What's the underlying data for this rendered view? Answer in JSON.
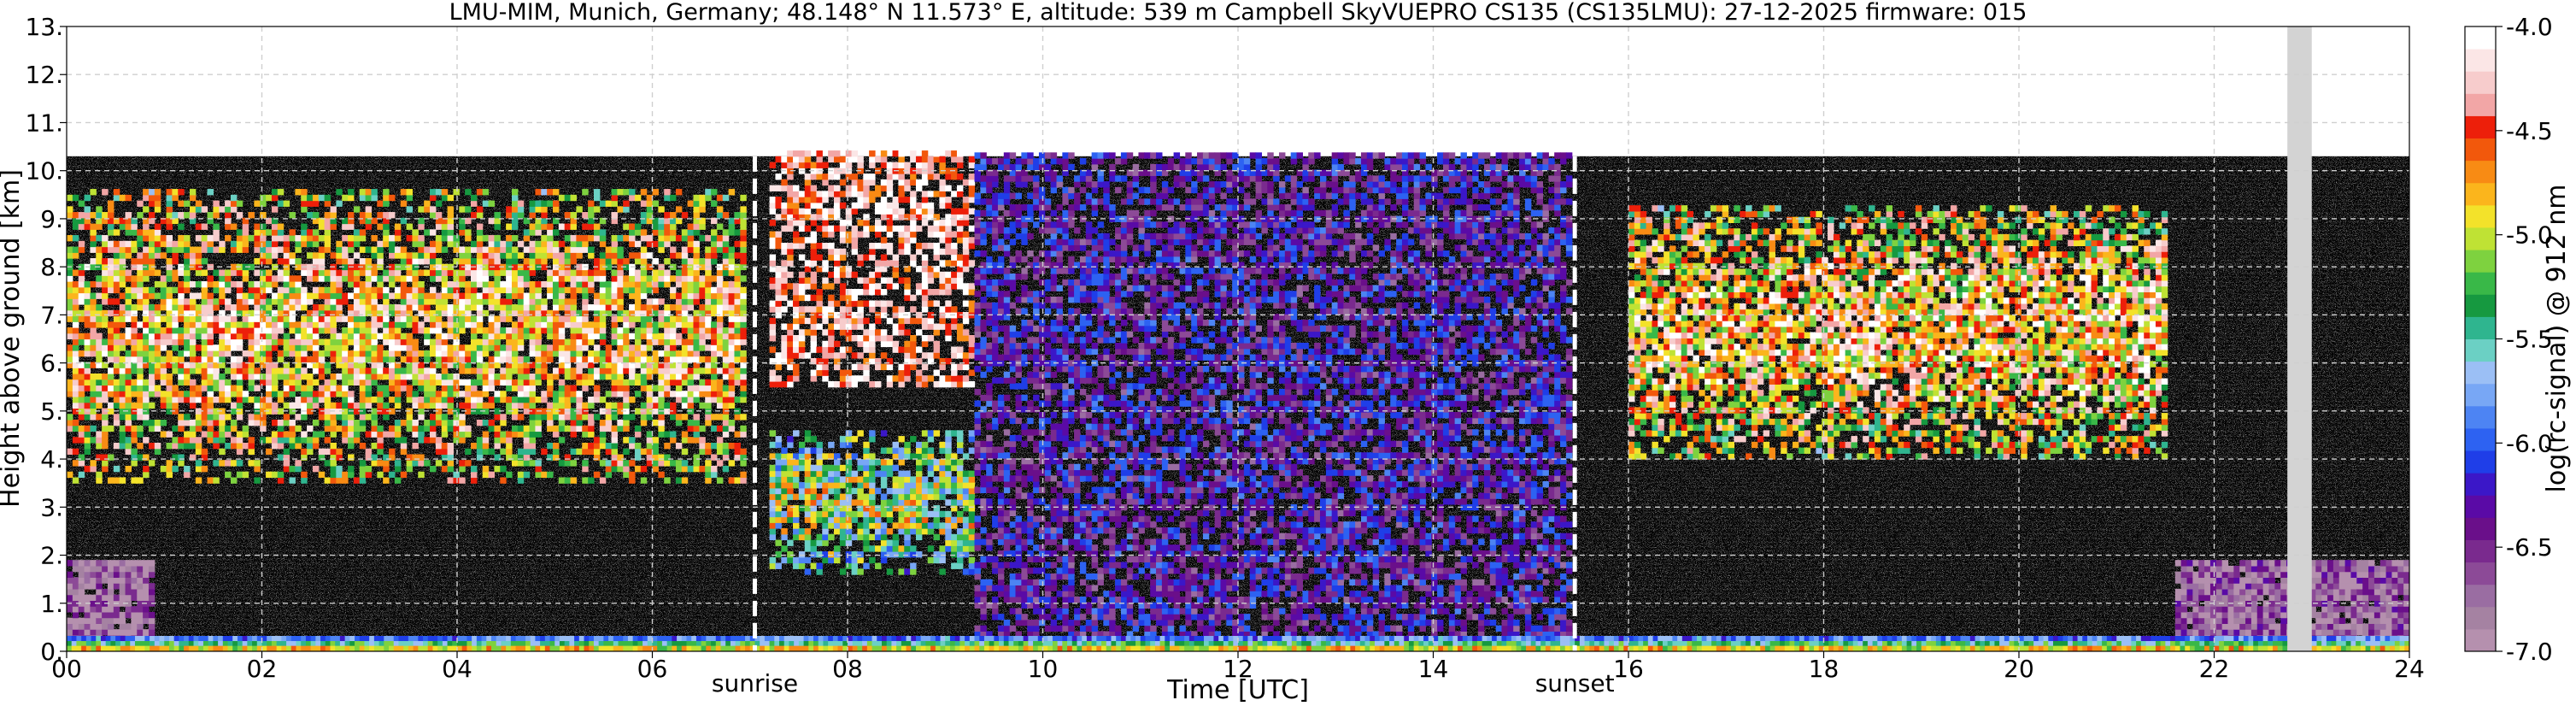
{
  "chart_data": {
    "type": "heatmap",
    "title": "LMU-MIM, Munich, Germany; 48.148° N 11.573° E, altitude: 539 m    Campbell SkyVUEPRO CS135 (CS135LMU): 27-12-2025    firmware: 015",
    "xlabel": "Time [UTC]",
    "ylabel": "Height above ground [km]",
    "xlim": [
      0,
      24
    ],
    "ylim": [
      0,
      13
    ],
    "x_ticks": [
      0,
      2,
      4,
      6,
      8,
      10,
      12,
      14,
      16,
      18,
      20,
      22,
      24
    ],
    "x_tick_labels": [
      "00",
      "02",
      "04",
      "06",
      "08",
      "10",
      "12",
      "14",
      "16",
      "18",
      "20",
      "22",
      "24"
    ],
    "y_ticks": [
      0,
      1,
      2,
      3,
      4,
      5,
      6,
      7,
      8,
      9,
      10,
      11,
      12,
      13
    ],
    "y_tick_labels": [
      "0.",
      "1.",
      "2.",
      "3.",
      "4.",
      "5.",
      "6.",
      "7.",
      "8.",
      "9.",
      "10.",
      "11.",
      "12.",
      "13."
    ],
    "grid": true,
    "data_top_km": 10.3,
    "missing_data_band_hours": [
      22.75,
      23.0
    ],
    "events": [
      {
        "label": "sunrise",
        "hour": 7.05
      },
      {
        "label": "sunset",
        "hour": 15.45
      }
    ],
    "colorbar": {
      "label": "log(rc-signal) @ 912 nm",
      "min": -7.0,
      "max": -4.0,
      "ticks": [
        -7.0,
        -6.5,
        -6.0,
        -5.5,
        -5.0,
        -4.5,
        -4.0
      ],
      "tick_labels": [
        "-7.0",
        "-6.5",
        "-6.0",
        "-5.5",
        "-5.0",
        "-4.5",
        "-4.0"
      ],
      "colors": [
        "#b590ae",
        "#a582a2",
        "#9a6da2",
        "#8c4a97",
        "#7a2a8e",
        "#6a0f8a",
        "#5a0aa6",
        "#3b17c8",
        "#1f3ee8",
        "#2d62f2",
        "#4d84f3",
        "#78a7f5",
        "#9bbff5",
        "#6bd0c4",
        "#2fb58f",
        "#169940",
        "#39b848",
        "#7ed23f",
        "#bfe234",
        "#f3e22a",
        "#fbb51c",
        "#f88b14",
        "#f2580c",
        "#ed1f0a",
        "#f2a6a6",
        "#f7cccc",
        "#fbe6e6",
        "#ffffff"
      ]
    },
    "regions": [
      {
        "description_hours": [
          0.0,
          6.9
        ],
        "signal_level": -5.0,
        "height_km": [
          3.5,
          9.5
        ],
        "kind": "cloud"
      },
      {
        "description_hours": [
          16.0,
          21.5
        ],
        "signal_level": -5.0,
        "height_km": [
          4.0,
          9.2
        ],
        "kind": "cloud"
      },
      {
        "description_hours": [
          7.2,
          9.3
        ],
        "signal_level": -4.3,
        "height_km": [
          5.5,
          10.3
        ],
        "kind": "noise"
      },
      {
        "description_hours": [
          7.2,
          9.3
        ],
        "signal_level": -5.6,
        "height_km": [
          1.6,
          4.5
        ],
        "kind": "cloud"
      },
      {
        "description_hours": [
          9.3,
          15.4
        ],
        "signal_level": -6.3,
        "height_km": [
          0.3,
          10.3
        ],
        "kind": "noise"
      },
      {
        "description_hours": [
          0.0,
          0.9
        ],
        "signal_level": -6.8,
        "height_km": [
          0.1,
          1.8
        ],
        "kind": "aerosol"
      },
      {
        "description_hours": [
          21.6,
          24.0
        ],
        "signal_level": -6.7,
        "height_km": [
          0.1,
          1.9
        ],
        "kind": "aerosol"
      }
    ]
  }
}
